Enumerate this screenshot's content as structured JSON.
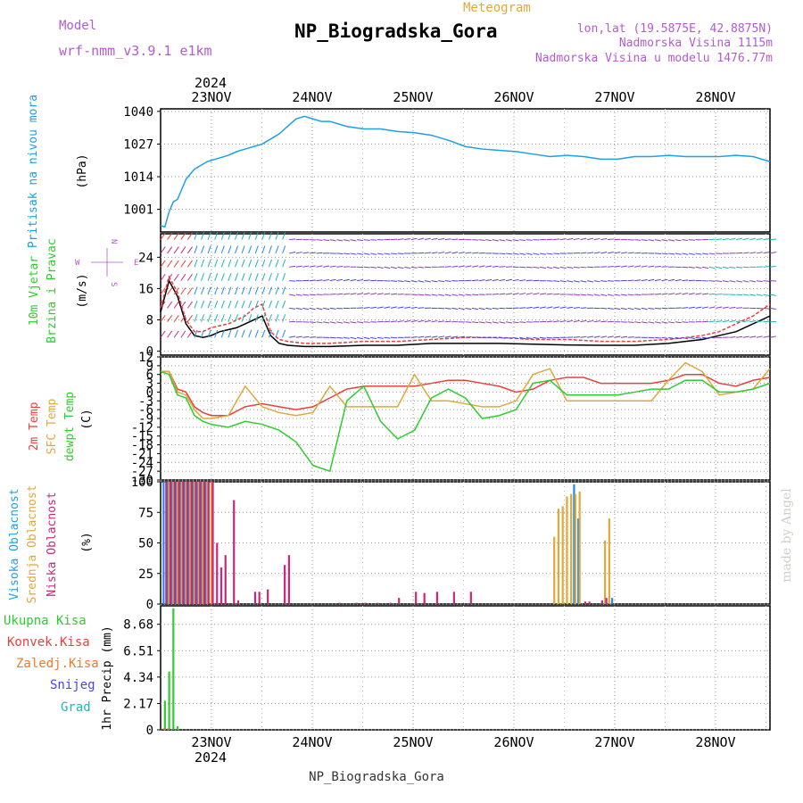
{
  "header": {
    "model_label": "Model",
    "model_name": "wrf-nmm_v3.9.1 e1km",
    "title": "NP_Biogradska_Gora",
    "meteogram_label": "Meteogram",
    "lonlat": "lon,lat (19.5875E, 42.8875N)",
    "elevation": "Nadmorska Visina 1115m",
    "model_elevation": "Nadmorska Visina u modelu 1476.77m",
    "year_top": "2024",
    "year_bottom": "2024",
    "footer_station": "NP_Biogradska_Gora",
    "watermark": "made by Angel"
  },
  "colors": {
    "pressure": "#1ea0e6",
    "temp2m": "#e8413c",
    "sfc_temp": "#e0a83c",
    "dewpoint": "#2ecc2e",
    "high_cloud": "#1e8cf0",
    "mid_cloud": "#e0a83c",
    "low_cloud": "#c8287a",
    "total_precip": "#2ecc2e",
    "conv_precip": "#e8413c",
    "frozen_precip": "#f07828",
    "snow": "#4646e6",
    "hail": "#20b4b4",
    "wind_label": "#2ecc2e",
    "model_text": "#b45ad2",
    "meteogram_text": "#e0a83c"
  },
  "time_axis": [
    "23NOV",
    "24NOV",
    "25NOV",
    "26NOV",
    "27NOV",
    "28NOV"
  ],
  "chart_data": [
    {
      "type": "line",
      "panel": "pressure",
      "ylabel_name": "Pritisak na nivou mora",
      "ylabel_unit": "(hPa)",
      "yticks": [
        1001,
        1014,
        1027,
        1040
      ],
      "ylim": [
        992,
        1041
      ],
      "xlim": [
        0,
        144
      ],
      "series": [
        {
          "x": [
            0,
            1,
            2,
            3,
            4,
            5,
            6,
            7,
            8,
            9,
            10,
            11,
            12,
            14,
            16,
            18,
            20,
            22,
            24,
            26,
            28,
            30,
            32,
            34,
            36,
            38,
            40,
            42,
            44,
            48,
            52,
            56,
            60,
            64,
            68,
            72,
            76,
            80,
            84,
            88,
            92,
            96,
            100,
            104,
            108,
            112,
            116,
            120,
            124,
            128,
            132,
            136,
            140,
            144
          ],
          "values": [
            994.5,
            994,
            1000,
            1004,
            1005,
            1009,
            1013,
            1015,
            1017,
            1018,
            1019,
            1020,
            1020.5,
            1021.5,
            1022.5,
            1024,
            1025,
            1026,
            1027,
            1029,
            1031,
            1034,
            1037,
            1038,
            1037,
            1036,
            1036,
            1035,
            1034,
            1033,
            1033,
            1032,
            1031.5,
            1030.5,
            1028.5,
            1026,
            1025,
            1024.5,
            1024,
            1023,
            1022,
            1022.5,
            1022,
            1021,
            1021,
            1022,
            1022,
            1022.5,
            1022,
            1022,
            1022,
            1022.5,
            1022,
            1020
          ]
        }
      ]
    },
    {
      "type": "line",
      "panel": "wind",
      "ylabel_name1": "10m Vjetar",
      "ylabel_name2": "Brzina i Pravac",
      "ylabel_unit": "(m/s)",
      "compass_n": "N",
      "compass_s": "S",
      "compass_e": "E",
      "compass_w": "W",
      "yticks": [
        0,
        8,
        16,
        24
      ],
      "ylim": [
        -1,
        30
      ],
      "xlim": [
        0,
        144
      ],
      "series": [
        {
          "name": "wind speed",
          "x": [
            0,
            2,
            4,
            6,
            8,
            10,
            12,
            14,
            16,
            18,
            20,
            22,
            24,
            26,
            28,
            30,
            34,
            40,
            48,
            56,
            64,
            72,
            80,
            88,
            96,
            104,
            112,
            120,
            128,
            132,
            136,
            140,
            144
          ],
          "values": [
            10,
            18,
            14,
            7,
            4,
            3.5,
            4,
            5,
            5.5,
            6,
            7,
            8,
            9,
            4,
            2,
            1.5,
            1.2,
            1.2,
            1.5,
            1.5,
            2,
            2,
            2,
            1.8,
            1.6,
            1.5,
            1.5,
            2,
            3,
            4,
            5,
            7,
            9
          ]
        },
        {
          "name": "wind gust",
          "x": [
            0,
            2,
            4,
            6,
            8,
            10,
            12,
            14,
            16,
            18,
            20,
            22,
            24,
            26,
            28,
            30,
            34,
            40,
            48,
            56,
            64,
            72,
            80,
            88,
            96,
            104,
            112,
            120,
            128,
            132,
            136,
            140,
            144
          ],
          "values": [
            11,
            19,
            15,
            8,
            5,
            5,
            6,
            6.5,
            7,
            8,
            9,
            11,
            12,
            5,
            3,
            2.5,
            2,
            2,
            2.5,
            2.5,
            3,
            3.5,
            3.5,
            3,
            3,
            2.5,
            2.5,
            3,
            4,
            5,
            7,
            9,
            12
          ]
        }
      ]
    },
    {
      "type": "line",
      "panel": "temperature",
      "ylabel_name1": "2m Temp",
      "ylabel_name2": "SFC Temp",
      "ylabel_name3": "dewpt Temp",
      "ylabel_unit": "(C)",
      "yticks": [
        12,
        9,
        6,
        3,
        0,
        -3,
        -6,
        -9,
        -12,
        -15,
        -18,
        -21,
        -24,
        -27,
        -30
      ],
      "ylim": [
        -30,
        12
      ],
      "xlim": [
        0,
        144
      ],
      "series": [
        {
          "name": "2m Temp",
          "x": [
            0,
            2,
            4,
            6,
            8,
            10,
            12,
            16,
            20,
            24,
            28,
            32,
            36,
            40,
            44,
            48,
            52,
            56,
            60,
            64,
            68,
            72,
            76,
            80,
            84,
            88,
            92,
            96,
            100,
            104,
            108,
            112,
            116,
            120,
            124,
            128,
            132,
            136,
            140,
            144
          ],
          "values": [
            7,
            7,
            1,
            0,
            -5,
            -7,
            -8,
            -8,
            -5,
            -4,
            -5,
            -6,
            -5,
            -2,
            1,
            2,
            2,
            2,
            2,
            3,
            4,
            4,
            3,
            2,
            0,
            1,
            4,
            5,
            5,
            3,
            3,
            3,
            3,
            4,
            6,
            6,
            3,
            2,
            4,
            5
          ]
        },
        {
          "name": "SFC Temp",
          "x": [
            0,
            2,
            4,
            6,
            8,
            10,
            12,
            16,
            20,
            24,
            28,
            32,
            36,
            40,
            44,
            48,
            52,
            56,
            60,
            64,
            68,
            72,
            76,
            80,
            84,
            88,
            92,
            96,
            100,
            104,
            108,
            112,
            116,
            120,
            124,
            128,
            132,
            136,
            140,
            144
          ],
          "values": [
            7,
            7,
            0,
            -1,
            -6,
            -9,
            -9,
            -8,
            2,
            -5,
            -7,
            -8,
            -7,
            2,
            -5,
            -5,
            -5,
            -5,
            6,
            -3,
            -3,
            -4,
            -5,
            -5,
            -3,
            6,
            8,
            -3,
            -3,
            -3,
            -3,
            -3,
            -3,
            4,
            10,
            7,
            -1,
            0,
            1,
            8
          ]
        },
        {
          "name": "dewpt Temp",
          "x": [
            0,
            2,
            4,
            6,
            8,
            10,
            12,
            16,
            20,
            24,
            28,
            32,
            36,
            40,
            44,
            48,
            52,
            56,
            60,
            64,
            68,
            72,
            76,
            80,
            84,
            88,
            92,
            96,
            100,
            104,
            108,
            112,
            116,
            120,
            124,
            128,
            132,
            136,
            140,
            144
          ],
          "values": [
            7,
            6,
            -1,
            -2,
            -8,
            -10,
            -11,
            -12,
            -10,
            -11,
            -13,
            -17,
            -25,
            -27,
            -3,
            2,
            -10,
            -16,
            -13,
            -2,
            1,
            -2,
            -9,
            -8,
            -6,
            3,
            4,
            -1,
            -1,
            -1,
            -1,
            0,
            1,
            1,
            4,
            4,
            0,
            0,
            1,
            3
          ]
        }
      ]
    },
    {
      "type": "bar",
      "panel": "cloud",
      "ylabel_name1": "Visoka Oblacnost",
      "ylabel_name2": "Srednja Oblacnost",
      "ylabel_name3": "Niska Oblacnost",
      "ylabel_unit": "(%)",
      "yticks": [
        0,
        25,
        50,
        75,
        100
      ],
      "ylim": [
        0,
        100
      ],
      "xlim": [
        0,
        144
      ],
      "series": [
        {
          "name": "high",
          "x": [
            1,
            2,
            3,
            4,
            5,
            6,
            7,
            8,
            9,
            10,
            11,
            98,
            99,
            107
          ],
          "values": [
            100,
            100,
            100,
            100,
            100,
            100,
            100,
            100,
            100,
            100,
            100,
            98,
            70,
            5
          ]
        },
        {
          "name": "mid",
          "x": [
            2,
            3,
            4,
            5,
            6,
            7,
            8,
            9,
            10,
            11,
            12,
            93,
            94,
            95,
            96,
            97,
            98,
            99,
            105,
            106
          ],
          "values": [
            100,
            100,
            100,
            100,
            100,
            100,
            100,
            100,
            100,
            100,
            100,
            55,
            78,
            80,
            88,
            90,
            90,
            92,
            52,
            70
          ]
        },
        {
          "name": "low",
          "x": [
            1,
            2,
            3,
            4,
            5,
            6,
            7,
            8,
            9,
            10,
            11,
            12,
            13,
            14,
            15,
            17,
            18,
            22,
            23,
            25,
            29,
            30,
            42,
            46,
            48,
            51,
            54,
            56,
            60,
            62,
            65,
            69,
            73,
            100,
            101,
            104,
            105
          ],
          "values": [
            100,
            100,
            100,
            100,
            100,
            100,
            100,
            100,
            100,
            100,
            100,
            100,
            50,
            30,
            40,
            85,
            3,
            10,
            10,
            12,
            32,
            40,
            1,
            1,
            1,
            1,
            1,
            5,
            10,
            9,
            10,
            10,
            10,
            2,
            2,
            3,
            5
          ]
        }
      ]
    },
    {
      "type": "bar",
      "panel": "precip",
      "ylabel_name": "1hr Precip",
      "ylabel_unit": "(mm)",
      "legend": [
        "Ukupna Kisa",
        "Konvek.Kisa",
        "Zaledj.Kisa",
        "Snijeg",
        "Grad"
      ],
      "yticks": [
        0,
        2.17,
        4.34,
        6.51,
        8.68
      ],
      "ylim": [
        0,
        10.2
      ],
      "xlim": [
        0,
        144
      ],
      "series": [
        {
          "name": "Ukupna Kisa",
          "x": [
            1,
            2,
            3,
            4
          ],
          "values": [
            2.4,
            4.8,
            10,
            0.3
          ]
        },
        {
          "name": "Konvek.Kisa",
          "x": [
            1,
            2
          ],
          "values": [
            0.1,
            0.1
          ]
        }
      ]
    }
  ]
}
